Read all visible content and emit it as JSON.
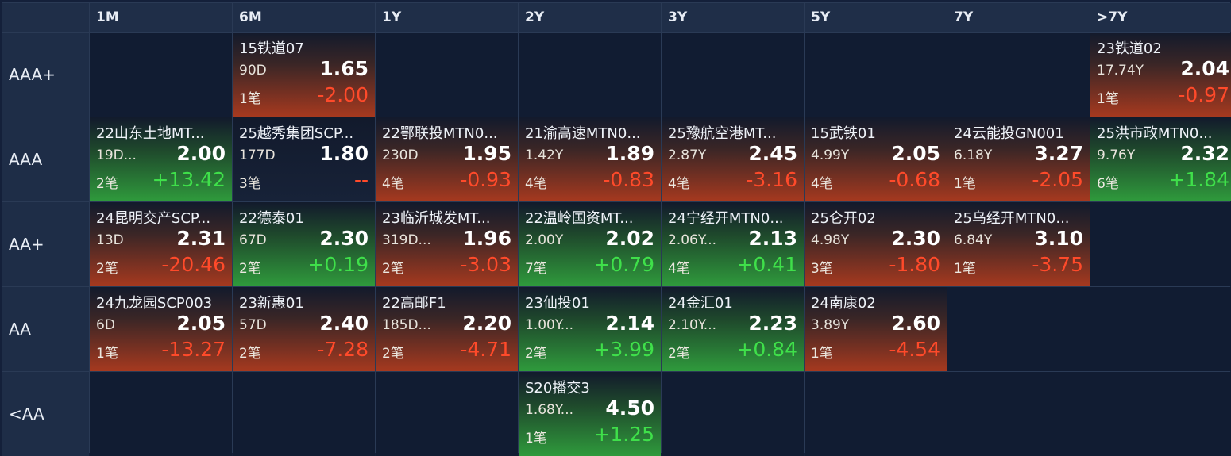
{
  "columns": [
    "1M",
    "6M",
    "1Y",
    "2Y",
    "3Y",
    "5Y",
    "7Y",
    ">7Y"
  ],
  "colors": {
    "up": "#3fe04a",
    "down": "#ff4a2a",
    "neutral": "#7f93ad",
    "background": "#111c32"
  },
  "rows": [
    {
      "rating": "AAA+",
      "cells": [
        null,
        {
          "name": "15铁道07",
          "term": "90D",
          "rate": "1.65",
          "count": "1笔",
          "change": "-2.00",
          "trend": "red"
        },
        null,
        null,
        null,
        null,
        null,
        {
          "name": "23铁道02",
          "term": "17.74Y",
          "rate": "2.04",
          "count": "1笔",
          "change": "-0.97",
          "trend": "red"
        }
      ]
    },
    {
      "rating": "AAA",
      "cells": [
        {
          "name": "22山东土地MT...",
          "term": "19D...",
          "rate": "2.00",
          "count": "2笔",
          "change": "+13.42",
          "trend": "green"
        },
        {
          "name": "25越秀集团SCP...",
          "term": "177D",
          "rate": "1.80",
          "count": "3笔",
          "change": "--",
          "trend": "dark"
        },
        {
          "name": "22鄂联投MTN0...",
          "term": "230D",
          "rate": "1.95",
          "count": "4笔",
          "change": "-0.93",
          "trend": "red"
        },
        {
          "name": "21渝高速MTN0...",
          "term": "1.42Y",
          "rate": "1.89",
          "count": "4笔",
          "change": "-0.83",
          "trend": "red"
        },
        {
          "name": "25豫航空港MT...",
          "term": "2.87Y",
          "rate": "2.45",
          "count": "4笔",
          "change": "-3.16",
          "trend": "red"
        },
        {
          "name": "15武铁01",
          "term": "4.99Y",
          "rate": "2.05",
          "count": "4笔",
          "change": "-0.68",
          "trend": "red"
        },
        {
          "name": "24云能投GN001",
          "term": "6.18Y",
          "rate": "3.27",
          "count": "1笔",
          "change": "-2.05",
          "trend": "red"
        },
        {
          "name": "25洪市政MTN0...",
          "term": "9.76Y",
          "rate": "2.32",
          "count": "6笔",
          "change": "+1.84",
          "trend": "green"
        }
      ]
    },
    {
      "rating": "AA+",
      "cells": [
        {
          "name": "24昆明交产SCP...",
          "term": "13D",
          "rate": "2.31",
          "count": "2笔",
          "change": "-20.46",
          "trend": "red"
        },
        {
          "name": "22德泰01",
          "term": "67D",
          "rate": "2.30",
          "count": "2笔",
          "change": "+0.19",
          "trend": "green"
        },
        {
          "name": "23临沂城发MT...",
          "term": "319D...",
          "rate": "1.96",
          "count": "2笔",
          "change": "-3.03",
          "trend": "red"
        },
        {
          "name": "22温岭国资MT...",
          "term": "2.00Y",
          "rate": "2.02",
          "count": "7笔",
          "change": "+0.79",
          "trend": "green"
        },
        {
          "name": "24宁经开MTN0...",
          "term": "2.06Y...",
          "rate": "2.13",
          "count": "4笔",
          "change": "+0.41",
          "trend": "green"
        },
        {
          "name": "25仑开02",
          "term": "4.98Y",
          "rate": "2.30",
          "count": "3笔",
          "change": "-1.80",
          "trend": "red"
        },
        {
          "name": "25乌经开MTN0...",
          "term": "6.84Y",
          "rate": "3.10",
          "count": "1笔",
          "change": "-3.75",
          "trend": "red"
        },
        null
      ]
    },
    {
      "rating": "AA",
      "cells": [
        {
          "name": "24九龙园SCP003",
          "term": "6D",
          "rate": "2.05",
          "count": "1笔",
          "change": "-13.27",
          "trend": "red"
        },
        {
          "name": "23新惠01",
          "term": "57D",
          "rate": "2.40",
          "count": "2笔",
          "change": "-7.28",
          "trend": "red"
        },
        {
          "name": "22高邮F1",
          "term": "185D...",
          "rate": "2.20",
          "count": "2笔",
          "change": "-4.71",
          "trend": "red"
        },
        {
          "name": "23仙投01",
          "term": "1.00Y...",
          "rate": "2.14",
          "count": "2笔",
          "change": "+3.99",
          "trend": "green"
        },
        {
          "name": "24金汇01",
          "term": "2.10Y...",
          "rate": "2.23",
          "count": "2笔",
          "change": "+0.84",
          "trend": "green"
        },
        {
          "name": "24南康02",
          "term": "3.89Y",
          "rate": "2.60",
          "count": "1笔",
          "change": "-4.54",
          "trend": "red"
        },
        null,
        null
      ]
    },
    {
      "rating": "<AA",
      "cells": [
        null,
        null,
        null,
        {
          "name": "S20播交3",
          "term": "1.68Y...",
          "rate": "4.50",
          "count": "1笔",
          "change": "+1.25",
          "trend": "green"
        },
        null,
        null,
        null,
        null
      ]
    }
  ]
}
